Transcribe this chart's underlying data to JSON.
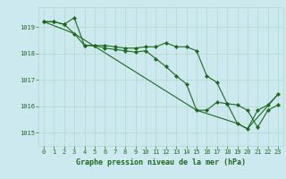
{
  "xlabel": "Graphe pression niveau de la mer (hPa)",
  "background_color": "#cde9f0",
  "grid_color": "#b0d8c8",
  "line_color": "#1a6b1a",
  "marker_color": "#1a6b1a",
  "x_ticks": [
    0,
    1,
    2,
    3,
    4,
    5,
    6,
    7,
    8,
    9,
    10,
    11,
    12,
    13,
    14,
    15,
    16,
    17,
    18,
    19,
    20,
    21,
    22,
    23
  ],
  "y_ticks": [
    1015,
    1016,
    1017,
    1018,
    1019
  ],
  "ylim": [
    1014.5,
    1019.75
  ],
  "xlim": [
    -0.5,
    23.5
  ],
  "series1_x": [
    0,
    1,
    2,
    3,
    4,
    5,
    6,
    7,
    8,
    9,
    10,
    11,
    12,
    13,
    14,
    15,
    16,
    17,
    18,
    19,
    20,
    21,
    22,
    23
  ],
  "series1_y": [
    1019.2,
    1019.2,
    1019.1,
    1019.35,
    1018.3,
    1018.3,
    1018.3,
    1018.25,
    1018.2,
    1018.2,
    1018.25,
    1018.25,
    1018.4,
    1018.25,
    1018.25,
    1018.1,
    1017.15,
    1016.9,
    1016.1,
    1016.05,
    1015.85,
    1015.2,
    1015.85,
    1016.05
  ],
  "series2_x": [
    0,
    1,
    2,
    3,
    4,
    5,
    6,
    7,
    8,
    9,
    10,
    11,
    12,
    13,
    14,
    15,
    16,
    17,
    18,
    19,
    20,
    21,
    22,
    23
  ],
  "series2_y": [
    1019.2,
    1019.2,
    1019.1,
    1018.75,
    1018.3,
    1018.3,
    1018.2,
    1018.15,
    1018.1,
    1018.05,
    1018.1,
    1017.8,
    1017.5,
    1017.15,
    1016.85,
    1015.85,
    1015.85,
    1016.15,
    1016.1,
    1015.35,
    1015.15,
    1015.85,
    1016.05,
    1016.45
  ],
  "series3_x": [
    0,
    3,
    15,
    19,
    20,
    23
  ],
  "series3_y": [
    1019.2,
    1018.75,
    1015.85,
    1015.35,
    1015.15,
    1016.45
  ],
  "xlabel_fontsize": 6.0,
  "tick_fontsize": 5.0
}
